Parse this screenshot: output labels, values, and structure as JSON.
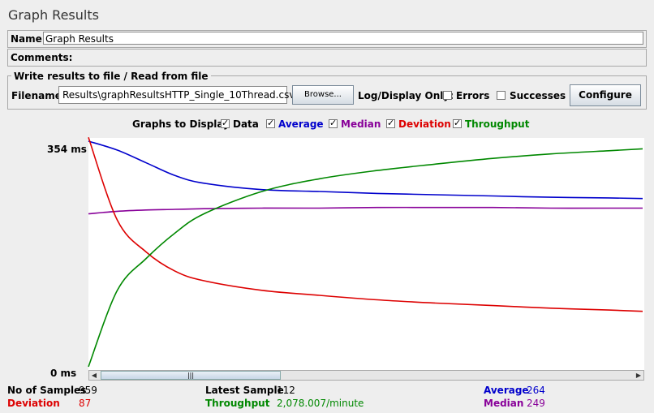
{
  "window": {
    "title": "Graph Results"
  },
  "form": {
    "name_label": "Name:",
    "name_value": "Graph Results",
    "comments_label": "Comments:"
  },
  "file": {
    "legend": "Write results to file / Read from file",
    "filename_label": "Filename",
    "filename_value": "Results\\graphResultsHTTP_Single_10Thread.csv",
    "browse_label": "Browse...",
    "log_display_label": "Log/Display Only:",
    "errors_label": "Errors",
    "successes_label": "Successes",
    "configure_label": "Configure"
  },
  "graphs": {
    "label": "Graphs to Display",
    "options": [
      {
        "label": "Data",
        "color": "#000000",
        "checked": true
      },
      {
        "label": "Average",
        "color": "#0000cc",
        "checked": true
      },
      {
        "label": "Median",
        "color": "#880099",
        "checked": true
      },
      {
        "label": "Deviation",
        "color": "#dd0000",
        "checked": true
      },
      {
        "label": "Throughput",
        "color": "#008800",
        "checked": true
      }
    ]
  },
  "chart_data": {
    "type": "line",
    "ylim": [
      0,
      354
    ],
    "y_tick_labels": [
      "354 ms",
      "0 ms"
    ],
    "x": [
      0,
      50,
      100,
      150,
      200,
      300,
      400,
      500,
      600,
      700,
      800,
      900,
      959
    ],
    "series": [
      {
        "name": "Average",
        "color": "#0000cc",
        "values": [
          354,
          340,
          320,
          300,
          288,
          278,
          275,
          272,
          270,
          268,
          266,
          265,
          264
        ]
      },
      {
        "name": "Median",
        "color": "#880099",
        "values": [
          240,
          244,
          246,
          247,
          248,
          249,
          249,
          250,
          250,
          250,
          249,
          249,
          249
        ]
      },
      {
        "name": "Deviation",
        "color": "#dd0000",
        "values": [
          360,
          230,
          180,
          150,
          135,
          120,
          112,
          105,
          100,
          96,
          92,
          89,
          87
        ]
      },
      {
        "name": "Throughput",
        "color": "#008800",
        "values": [
          0,
          120,
          170,
          210,
          240,
          275,
          295,
          308,
          318,
          327,
          334,
          339,
          342
        ]
      }
    ]
  },
  "stats": {
    "samples_label": "No of Samples",
    "samples_value": "959",
    "latest_label": "Latest Sample",
    "latest_value": "112",
    "average_label": "Average",
    "average_value": "264",
    "deviation_label": "Deviation",
    "deviation_value": "87",
    "throughput_label": "Throughput",
    "throughput_value": "2,078.007/minute",
    "median_label": "Median",
    "median_value": "249"
  }
}
